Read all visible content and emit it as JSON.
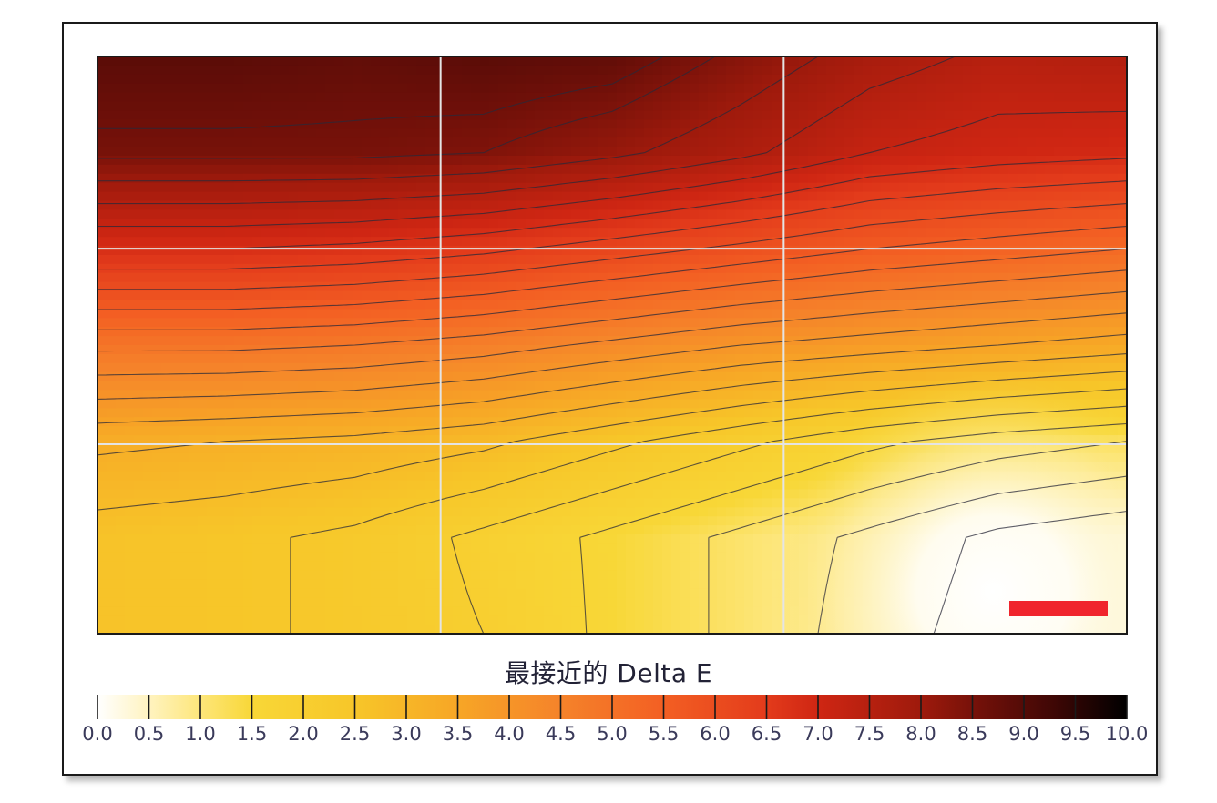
{
  "chart_data": {
    "type": "heatmap",
    "title": "",
    "xlabel": "",
    "ylabel": "",
    "grid": true,
    "grid_cells": {
      "columns": 3,
      "rows": 3
    },
    "legend_title": "最接近的 Delta E",
    "colorbar": {
      "min": 0.0,
      "max": 10.0,
      "step": 0.5,
      "tick_labels": [
        "0.0",
        "0.5",
        "1.0",
        "1.5",
        "2.0",
        "2.5",
        "3.0",
        "3.5",
        "4.0",
        "4.5",
        "5.0",
        "5.5",
        "6.0",
        "6.5",
        "7.0",
        "7.5",
        "8.0",
        "8.5",
        "9.0",
        "9.5",
        "10.0"
      ],
      "colors": [
        "#ffffff",
        "#fff3c0",
        "#fde67a",
        "#f8d737",
        "#f7c629",
        "#f7a626",
        "#f5832a",
        "#f35f23",
        "#e33b1b",
        "#cf2613",
        "#9e1a0c",
        "#701009",
        "#3e0705",
        "#000000"
      ],
      "color_stops": [
        0.0,
        0.5,
        1.0,
        1.5,
        2.5,
        3.5,
        4.5,
        5.5,
        6.5,
        7.0,
        8.0,
        8.6,
        9.3,
        10.0
      ]
    },
    "surface": {
      "description_of_grid": "Delta E values sampled over the panel (rows top→bottom, columns left→right)",
      "values": [
        [
          8.9,
          8.9,
          8.8,
          8.9,
          8.8,
          8.3,
          7.8,
          7.5,
          7.6
        ],
        [
          8.5,
          8.5,
          8.5,
          8.4,
          8.1,
          7.7,
          7.2,
          7.0,
          6.9
        ],
        [
          6.8,
          6.8,
          6.7,
          6.5,
          6.2,
          5.9,
          5.6,
          5.4,
          5.2
        ],
        [
          4.9,
          4.9,
          4.8,
          4.6,
          4.3,
          4.0,
          3.8,
          3.6,
          3.4
        ],
        [
          3.3,
          3.2,
          3.1,
          2.9,
          2.5,
          2.1,
          1.7,
          1.4,
          1.2
        ],
        [
          2.6,
          2.5,
          2.3,
          1.9,
          1.5,
          1.1,
          0.7,
          0.3,
          0.1
        ],
        [
          2.6,
          2.5,
          2.3,
          2.0,
          1.5,
          1.1,
          0.6,
          0.2,
          0.0
        ]
      ]
    },
    "contours": [
      {
        "level": 8.6
      },
      {
        "level": 8.4
      },
      {
        "level": 8.0
      },
      {
        "level": 7.6
      },
      {
        "level": 7.2
      },
      {
        "level": 6.8
      },
      {
        "level": 6.4
      },
      {
        "level": 6.0
      },
      {
        "level": 5.6
      },
      {
        "level": 5.2
      },
      {
        "level": 4.8
      },
      {
        "level": 4.4
      },
      {
        "level": 4.0
      },
      {
        "level": 3.6
      },
      {
        "level": 3.2
      },
      {
        "level": 2.8
      },
      {
        "level": 2.4
      },
      {
        "level": 2.0
      },
      {
        "level": 1.6
      },
      {
        "level": 1.2
      },
      {
        "level": 0.8
      },
      {
        "level": 0.4
      }
    ],
    "marker": {
      "color": "#f0252d"
    }
  }
}
